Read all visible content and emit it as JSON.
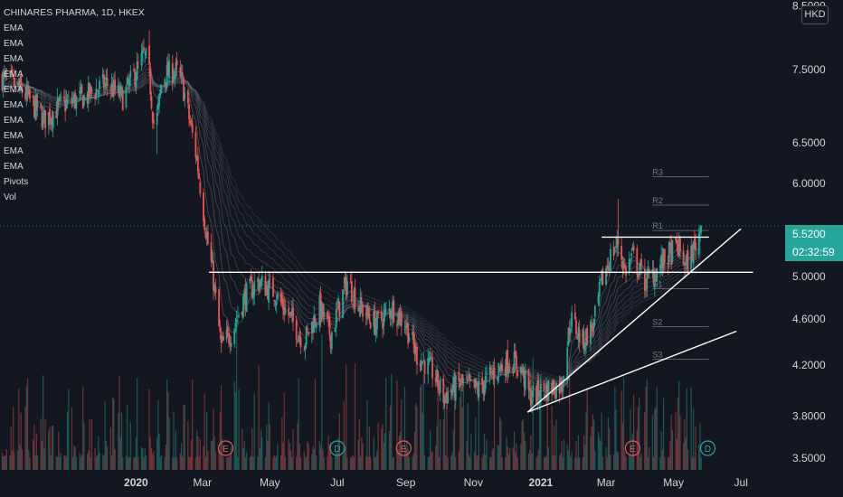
{
  "symbol": {
    "title": "CHINARES PHARMA, 1D, HKEX",
    "currency": "HKD",
    "indicators": [
      "EMA",
      "EMA",
      "EMA",
      "EMA",
      "EMA",
      "EMA",
      "EMA",
      "EMA",
      "EMA",
      "EMA",
      "Pivots",
      "Vol"
    ]
  },
  "last_price": {
    "price": "5.5200",
    "countdown": "02:32:59",
    "color": "#26a69a"
  },
  "colors": {
    "up": "#26a69a",
    "down": "#ef5350",
    "background": "#131722",
    "text": "#d1d4dc"
  },
  "chart_data": {
    "type": "candlestick",
    "y_scale": "log",
    "ylim": [
      3.42,
      8.6
    ],
    "y_ticks": [
      "3.5000",
      "3.8000",
      "4.2000",
      "4.6000",
      "5.0000",
      "5.5200",
      "6.0000",
      "6.5000",
      "7.5000",
      "8.5000"
    ],
    "x_ticks": [
      "2020",
      "Mar",
      "May",
      "Jul",
      "Sep",
      "Nov",
      "2021",
      "Mar",
      "May",
      "Jul"
    ],
    "x_tick_dates": [
      "2020-01-01",
      "2020-03-01",
      "2020-05-01",
      "2020-07-01",
      "2020-09-01",
      "2020-11-01",
      "2021-01-01",
      "2021-03-01",
      "2021-05-01",
      "2021-07-01"
    ],
    "xlim": [
      "2019-08-31",
      "2021-08-05"
    ],
    "close_path": [
      [
        "2019-09-01",
        7.4
      ],
      [
        "2019-09-20",
        7.2
      ],
      [
        "2019-10-10",
        6.8
      ],
      [
        "2019-10-25",
        7.0
      ],
      [
        "2019-11-15",
        7.1
      ],
      [
        "2019-12-05",
        7.3
      ],
      [
        "2019-12-20",
        7.1
      ],
      [
        "2020-01-08",
        7.7
      ],
      [
        "2020-01-12",
        7.6
      ],
      [
        "2020-01-18",
        6.6
      ],
      [
        "2020-01-25",
        7.4
      ],
      [
        "2020-02-05",
        7.5
      ],
      [
        "2020-02-12",
        7.3
      ],
      [
        "2020-02-25",
        6.3
      ],
      [
        "2020-03-05",
        5.4
      ],
      [
        "2020-03-10",
        5.05
      ],
      [
        "2020-03-18",
        4.35
      ],
      [
        "2020-03-28",
        4.5
      ],
      [
        "2020-04-08",
        4.8
      ],
      [
        "2020-04-20",
        4.95
      ],
      [
        "2020-05-05",
        4.85
      ],
      [
        "2020-05-20",
        4.6
      ],
      [
        "2020-06-01",
        4.4
      ],
      [
        "2020-06-15",
        4.7
      ],
      [
        "2020-06-25",
        4.45
      ],
      [
        "2020-07-05",
        4.8
      ],
      [
        "2020-07-10",
        4.95
      ],
      [
        "2020-07-22",
        4.7
      ],
      [
        "2020-08-05",
        4.55
      ],
      [
        "2020-08-20",
        4.7
      ],
      [
        "2020-09-01",
        4.55
      ],
      [
        "2020-09-10",
        4.3
      ],
      [
        "2020-09-25",
        4.15
      ],
      [
        "2020-10-05",
        3.95
      ],
      [
        "2020-10-20",
        4.05
      ],
      [
        "2020-11-05",
        4.0
      ],
      [
        "2020-11-20",
        4.15
      ],
      [
        "2020-12-05",
        4.25
      ],
      [
        "2020-12-15",
        4.15
      ],
      [
        "2020-12-22",
        3.95
      ],
      [
        "2021-01-05",
        4.0
      ],
      [
        "2021-01-20",
        4.05
      ],
      [
        "2021-01-28",
        4.6
      ],
      [
        "2021-02-08",
        4.4
      ],
      [
        "2021-02-18",
        4.55
      ],
      [
        "2021-02-25",
        4.95
      ],
      [
        "2021-03-05",
        5.2
      ],
      [
        "2021-03-12",
        5.35
      ],
      [
        "2021-03-18",
        5.05
      ],
      [
        "2021-03-25",
        5.2
      ],
      [
        "2021-04-05",
        4.95
      ],
      [
        "2021-04-15",
        5.05
      ],
      [
        "2021-04-25",
        5.2
      ],
      [
        "2021-05-05",
        5.3
      ],
      [
        "2021-05-12",
        5.1
      ],
      [
        "2021-05-20",
        5.3
      ],
      [
        "2021-05-26",
        5.52
      ]
    ],
    "highlights": [
      {
        "date": "2020-01-12",
        "high": 8.1,
        "low": 7.4
      },
      {
        "date": "2020-01-19",
        "high": 7.0,
        "low": 6.35
      },
      {
        "date": "2021-03-13",
        "high": 5.82,
        "low": 5.2
      }
    ],
    "ema_band": {
      "count": 10,
      "color": "#787b86"
    },
    "volume": {
      "max_price_axis_frac": 0.33
    },
    "horizontal_levels": [
      {
        "value": 5.04,
        "start": "2020-03-07",
        "end": "2021-07-12"
      },
      {
        "value": 5.4,
        "start": "2021-02-25",
        "end": "2021-06-02"
      }
    ],
    "trendlines": [
      {
        "from": [
          "2020-12-20",
          3.83
        ],
        "to": [
          "2021-07-01",
          5.49
        ]
      },
      {
        "from": [
          "2020-12-20",
          3.83
        ],
        "to": [
          "2021-06-27",
          4.49
        ]
      }
    ],
    "pivots": [
      {
        "label": "R3",
        "value": 6.08
      },
      {
        "label": "R2",
        "value": 5.75
      },
      {
        "label": "R1",
        "value": 5.47
      },
      {
        "label": "S1",
        "value": 4.88
      },
      {
        "label": "S2",
        "value": 4.53
      },
      {
        "label": "S3",
        "value": 4.25
      }
    ],
    "pivot_range": [
      "2021-04-12",
      "2021-06-02"
    ],
    "events": [
      {
        "type": "E",
        "date": "2020-03-22",
        "color": "#ef5350"
      },
      {
        "type": "D",
        "date": "2020-07-01",
        "color": "#26a69a"
      },
      {
        "type": "E",
        "date": "2020-08-30",
        "color": "#ef5350"
      },
      {
        "type": "E",
        "date": "2021-03-25",
        "color": "#ef5350"
      },
      {
        "type": "D",
        "date": "2021-06-01",
        "color": "#26a69a"
      }
    ]
  }
}
